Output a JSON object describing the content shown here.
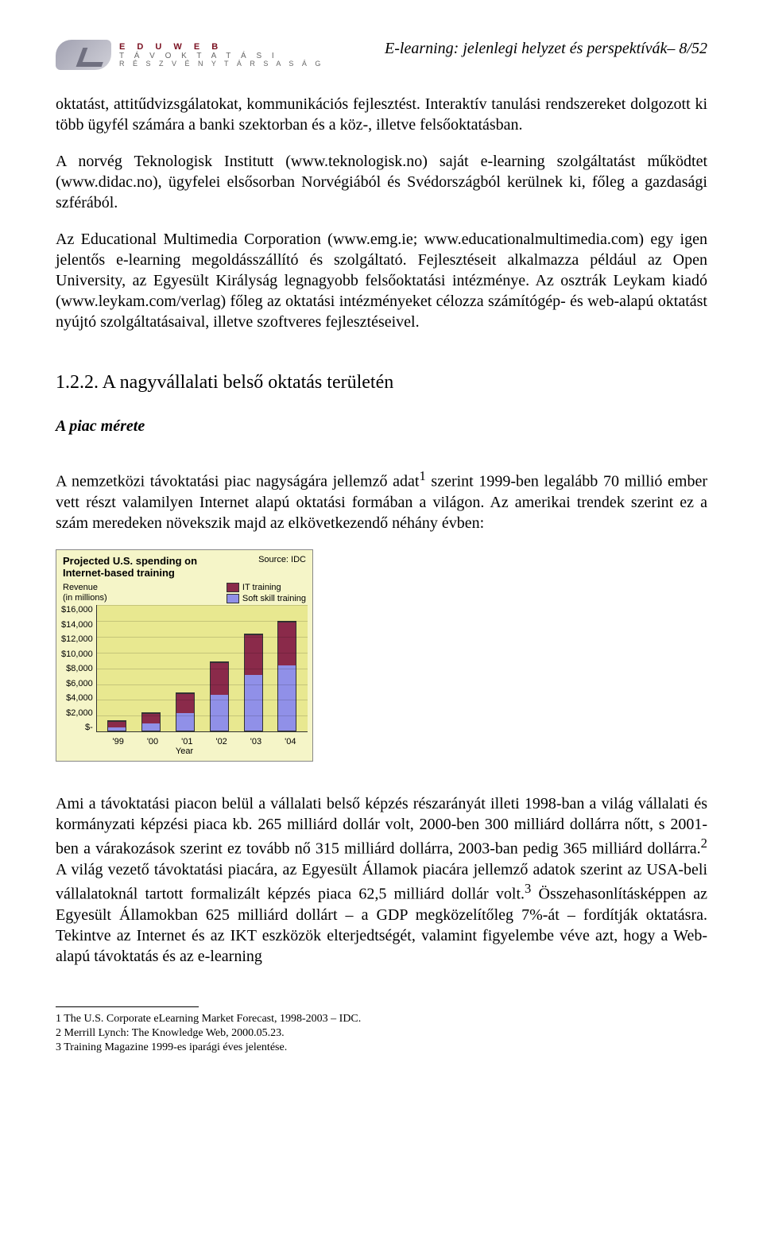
{
  "header": {
    "logo_line1": "E D U W E B",
    "logo_line2": "T Á V O K T A T Á S I",
    "logo_line3": "R É S Z V É N Y T Á R S A S Á G",
    "running_title": "E-learning: jelenlegi helyzet és perspektívák– 8/52"
  },
  "paragraphs": {
    "p1": "oktatást, attitűdvizsgálatokat, kommunikációs fejlesztést. Interaktív tanulási rendszereket dolgozott ki több ügyfél számára a banki szektorban és a köz-, illetve felsőoktatásban.",
    "p2": "A norvég Teknologisk Institutt (www.teknologisk.no) saját e-learning szolgáltatást működtet (www.didac.no), ügyfelei elsősorban Norvégiából és Svédországból kerülnek ki, főleg a gazdasági szférából.",
    "p3": "Az Educational Multimedia Corporation (www.emg.ie; www.educationalmultimedia.com) egy igen jelentős e-learning megoldásszállító és szolgáltató. Fejlesztéseit alkalmazza például az Open University, az Egyesült Királyság legnagyobb felsőoktatási intézménye. Az osztrák Leykam kiadó (www.leykam.com/verlag) főleg az oktatási intézményeket célozza számítógép- és web-alapú oktatást nyújtó szolgáltatásaival, illetve szoftveres fejlesztéseivel.",
    "p4_prefix": "A nemzetközi távoktatási piac nagyságára jellemző adat",
    "p4_sup": "1",
    "p4_rest": " szerint 1999-ben legalább 70 millió ember vett részt valamilyen Internet alapú oktatási formában a világon. Az amerikai trendek szerint ez a szám meredeken növekszik majd az elkövetkezendő néhány évben:",
    "p5_a": "Ami a távoktatási piacon belül a vállalati belső képzés részarányát illeti 1998-ban a világ vállalati és kormányzati képzési piaca kb. 265 milliárd dollár volt, 2000-ben 300 milliárd dollárra nőtt, s 2001-ben a várakozások szerint ez tovább nő 315 milliárd dollárra, 2003-ban pedig 365 milliárd dollárra.",
    "p5_sup1": "2",
    "p5_b": " A világ vezető távoktatási piacára, az Egyesült Államok piacára jellemző adatok szerint az USA-beli vállalatoknál tartott formalizált képzés piaca 62,5 milliárd dollár volt.",
    "p5_sup2": "3",
    "p5_c": " Összehasonlításképpen az Egyesült Államokban 625 milliárd dollárt – a GDP megközelítőleg 7%-át – fordítják oktatásra. Tekintve az Internet és az IKT eszközök elterjedtségét, valamint figyelembe véve azt, hogy a Web-alapú távoktatás és az e-learning"
  },
  "section": {
    "heading": "1.2.2. A nagyvállalati belső oktatás területén",
    "subheading": "A piac mérete"
  },
  "chart": {
    "type": "stacked-bar",
    "title_line1": "Projected U.S. spending on",
    "title_line2": "Internet-based training",
    "source": "Source: IDC",
    "revenue_label_line1": "Revenue",
    "revenue_label_line2": "(in millions)",
    "legend": [
      {
        "label": "IT training",
        "color": "#8a2a4a"
      },
      {
        "label": "Soft skill training",
        "color": "#9090e8"
      }
    ],
    "y_ticks": [
      "$16,000",
      "$14,000",
      "$12,000",
      "$10,000",
      "$8,000",
      "$6,000",
      "$4,000",
      "$2,000",
      "$-"
    ],
    "y_max": 16000,
    "x_label": "Year",
    "categories": [
      "'99",
      "'00",
      "'01",
      "'02",
      "'03",
      "'04"
    ],
    "series_soft": [
      400,
      900,
      2200,
      4500,
      7000,
      8200
    ],
    "series_it": [
      700,
      1200,
      2400,
      4000,
      5000,
      5400
    ],
    "background_color": "#f5f5c8",
    "plot_bg": "#e8e890",
    "grid_color": "rgba(0,0,0,0.15)"
  },
  "footnotes": {
    "f1": "1 The U.S. Corporate eLearning Market Forecast, 1998-2003 – IDC.",
    "f2": "2 Merrill Lynch: The Knowledge Web, 2000.05.23.",
    "f3": "3 Training Magazine 1999-es iparági éves jelentése."
  }
}
